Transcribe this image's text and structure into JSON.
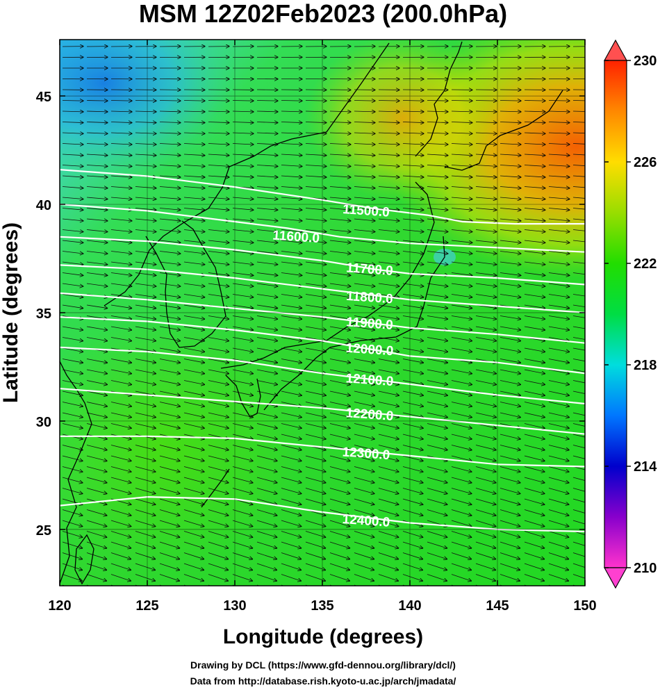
{
  "chart_data": {
    "type": "heatmap",
    "title": "MSM 12Z02Feb2023 (200.0hPa)",
    "xlabel": "Longitude (degrees)",
    "ylabel": "Latitude  (degrees)",
    "xlim": [
      120,
      150
    ],
    "ylim": [
      22.4,
      47.6
    ],
    "xticks": [
      "120",
      "125",
      "130",
      "135",
      "140",
      "145",
      "150"
    ],
    "yticks": [
      "25",
      "30",
      "35",
      "40",
      "45"
    ],
    "xtick_values": [
      120,
      125,
      130,
      135,
      140,
      145,
      150
    ],
    "ytick_values": [
      25,
      30,
      35,
      40,
      45
    ],
    "grid": true,
    "colorbar": {
      "min": 210,
      "max": 230,
      "ticks": [
        "210",
        "214",
        "218",
        "222",
        "226",
        "230"
      ],
      "tick_values": [
        210,
        214,
        218,
        222,
        226,
        230
      ]
    },
    "color_stops": [
      {
        "value": 210,
        "color": "#ff33cc"
      },
      {
        "value": 212,
        "color": "#8800cc"
      },
      {
        "value": 214,
        "color": "#0000cc"
      },
      {
        "value": 216,
        "color": "#0077ff"
      },
      {
        "value": 218,
        "color": "#00dddd"
      },
      {
        "value": 220,
        "color": "#00dd44"
      },
      {
        "value": 222,
        "color": "#22dd00"
      },
      {
        "value": 224,
        "color": "#99dd00"
      },
      {
        "value": 226,
        "color": "#ffdd00"
      },
      {
        "value": 228,
        "color": "#ff8800"
      },
      {
        "value": 230,
        "color": "#ff2200"
      }
    ],
    "contours": [
      {
        "label": "11500.0",
        "points": [
          [
            120,
            41.6
          ],
          [
            125,
            41.3
          ],
          [
            130,
            40.8
          ],
          [
            135,
            40.2
          ],
          [
            138,
            39.8
          ],
          [
            141,
            39.5
          ],
          [
            143,
            39.2
          ],
          [
            146,
            39.1
          ],
          [
            150,
            39.1
          ]
        ],
        "label_at": [
          137.5,
          39.7
        ]
      },
      {
        "label": "11600.0",
        "points": [
          [
            120,
            40.0
          ],
          [
            125,
            39.7
          ],
          [
            130,
            39.2
          ],
          [
            133,
            38.9
          ],
          [
            136,
            38.5
          ],
          [
            140,
            38.2
          ],
          [
            145,
            38.0
          ],
          [
            150,
            37.8
          ]
        ],
        "label_at": [
          133.5,
          38.5
        ]
      },
      {
        "label": "11700.0",
        "points": [
          [
            120,
            38.5
          ],
          [
            125,
            38.3
          ],
          [
            130,
            37.9
          ],
          [
            135,
            37.4
          ],
          [
            138,
            37.0
          ],
          [
            140,
            36.8
          ],
          [
            145,
            36.6
          ],
          [
            150,
            36.3
          ]
        ],
        "label_at": [
          137.7,
          37.0
        ]
      },
      {
        "label": "11800.0",
        "points": [
          [
            120,
            37.2
          ],
          [
            125,
            37.0
          ],
          [
            130,
            36.6
          ],
          [
            135,
            36.1
          ],
          [
            140,
            35.6
          ],
          [
            145,
            35.3
          ],
          [
            150,
            35.0
          ]
        ],
        "label_at": [
          137.7,
          35.7
        ]
      },
      {
        "label": "11900.0",
        "points": [
          [
            120,
            35.9
          ],
          [
            125,
            35.6
          ],
          [
            130,
            35.2
          ],
          [
            135,
            34.8
          ],
          [
            140,
            34.3
          ],
          [
            145,
            34.0
          ],
          [
            150,
            33.6
          ]
        ],
        "label_at": [
          137.7,
          34.5
        ]
      },
      {
        "label": "12000.0",
        "points": [
          [
            120,
            34.8
          ],
          [
            125,
            34.6
          ],
          [
            130,
            34.2
          ],
          [
            135,
            33.7
          ],
          [
            140,
            33.0
          ],
          [
            145,
            32.7
          ],
          [
            150,
            32.2
          ]
        ],
        "label_at": [
          137.7,
          33.3
        ]
      },
      {
        "label": "12100.0",
        "points": [
          [
            120,
            33.4
          ],
          [
            125,
            33.2
          ],
          [
            130,
            32.8
          ],
          [
            135,
            32.2
          ],
          [
            140,
            31.7
          ],
          [
            145,
            31.2
          ],
          [
            150,
            30.8
          ]
        ],
        "label_at": [
          137.7,
          31.9
        ]
      },
      {
        "label": "12200.0",
        "points": [
          [
            120,
            31.5
          ],
          [
            125,
            31.2
          ],
          [
            130,
            30.9
          ],
          [
            135,
            30.6
          ],
          [
            140,
            30.2
          ],
          [
            145,
            29.8
          ],
          [
            150,
            29.4
          ]
        ],
        "label_at": [
          137.7,
          30.3
        ]
      },
      {
        "label": "12300.0",
        "points": [
          [
            120,
            29.3
          ],
          [
            125,
            29.3
          ],
          [
            130,
            29.2
          ],
          [
            135,
            28.8
          ],
          [
            140,
            28.4
          ],
          [
            145,
            28.0
          ],
          [
            150,
            27.9
          ]
        ],
        "label_at": [
          137.5,
          28.5
        ]
      },
      {
        "label": "12400.0",
        "points": [
          [
            120,
            26.1
          ],
          [
            125,
            26.5
          ],
          [
            130,
            26.4
          ],
          [
            135,
            25.8
          ],
          [
            140,
            25.3
          ],
          [
            145,
            25.0
          ],
          [
            150,
            24.9
          ]
        ],
        "label_at": [
          137.5,
          25.4
        ]
      }
    ],
    "wind": {
      "direction_deg_from_east": -6,
      "speed_note": ""
    }
  },
  "credits": {
    "line1": "Drawing by DCL (https://www.gfd-dennou.org/library/dcl/)",
    "line2": "Data from http://database.rish.kyoto-u.ac.jp/arch/jmadata/"
  }
}
